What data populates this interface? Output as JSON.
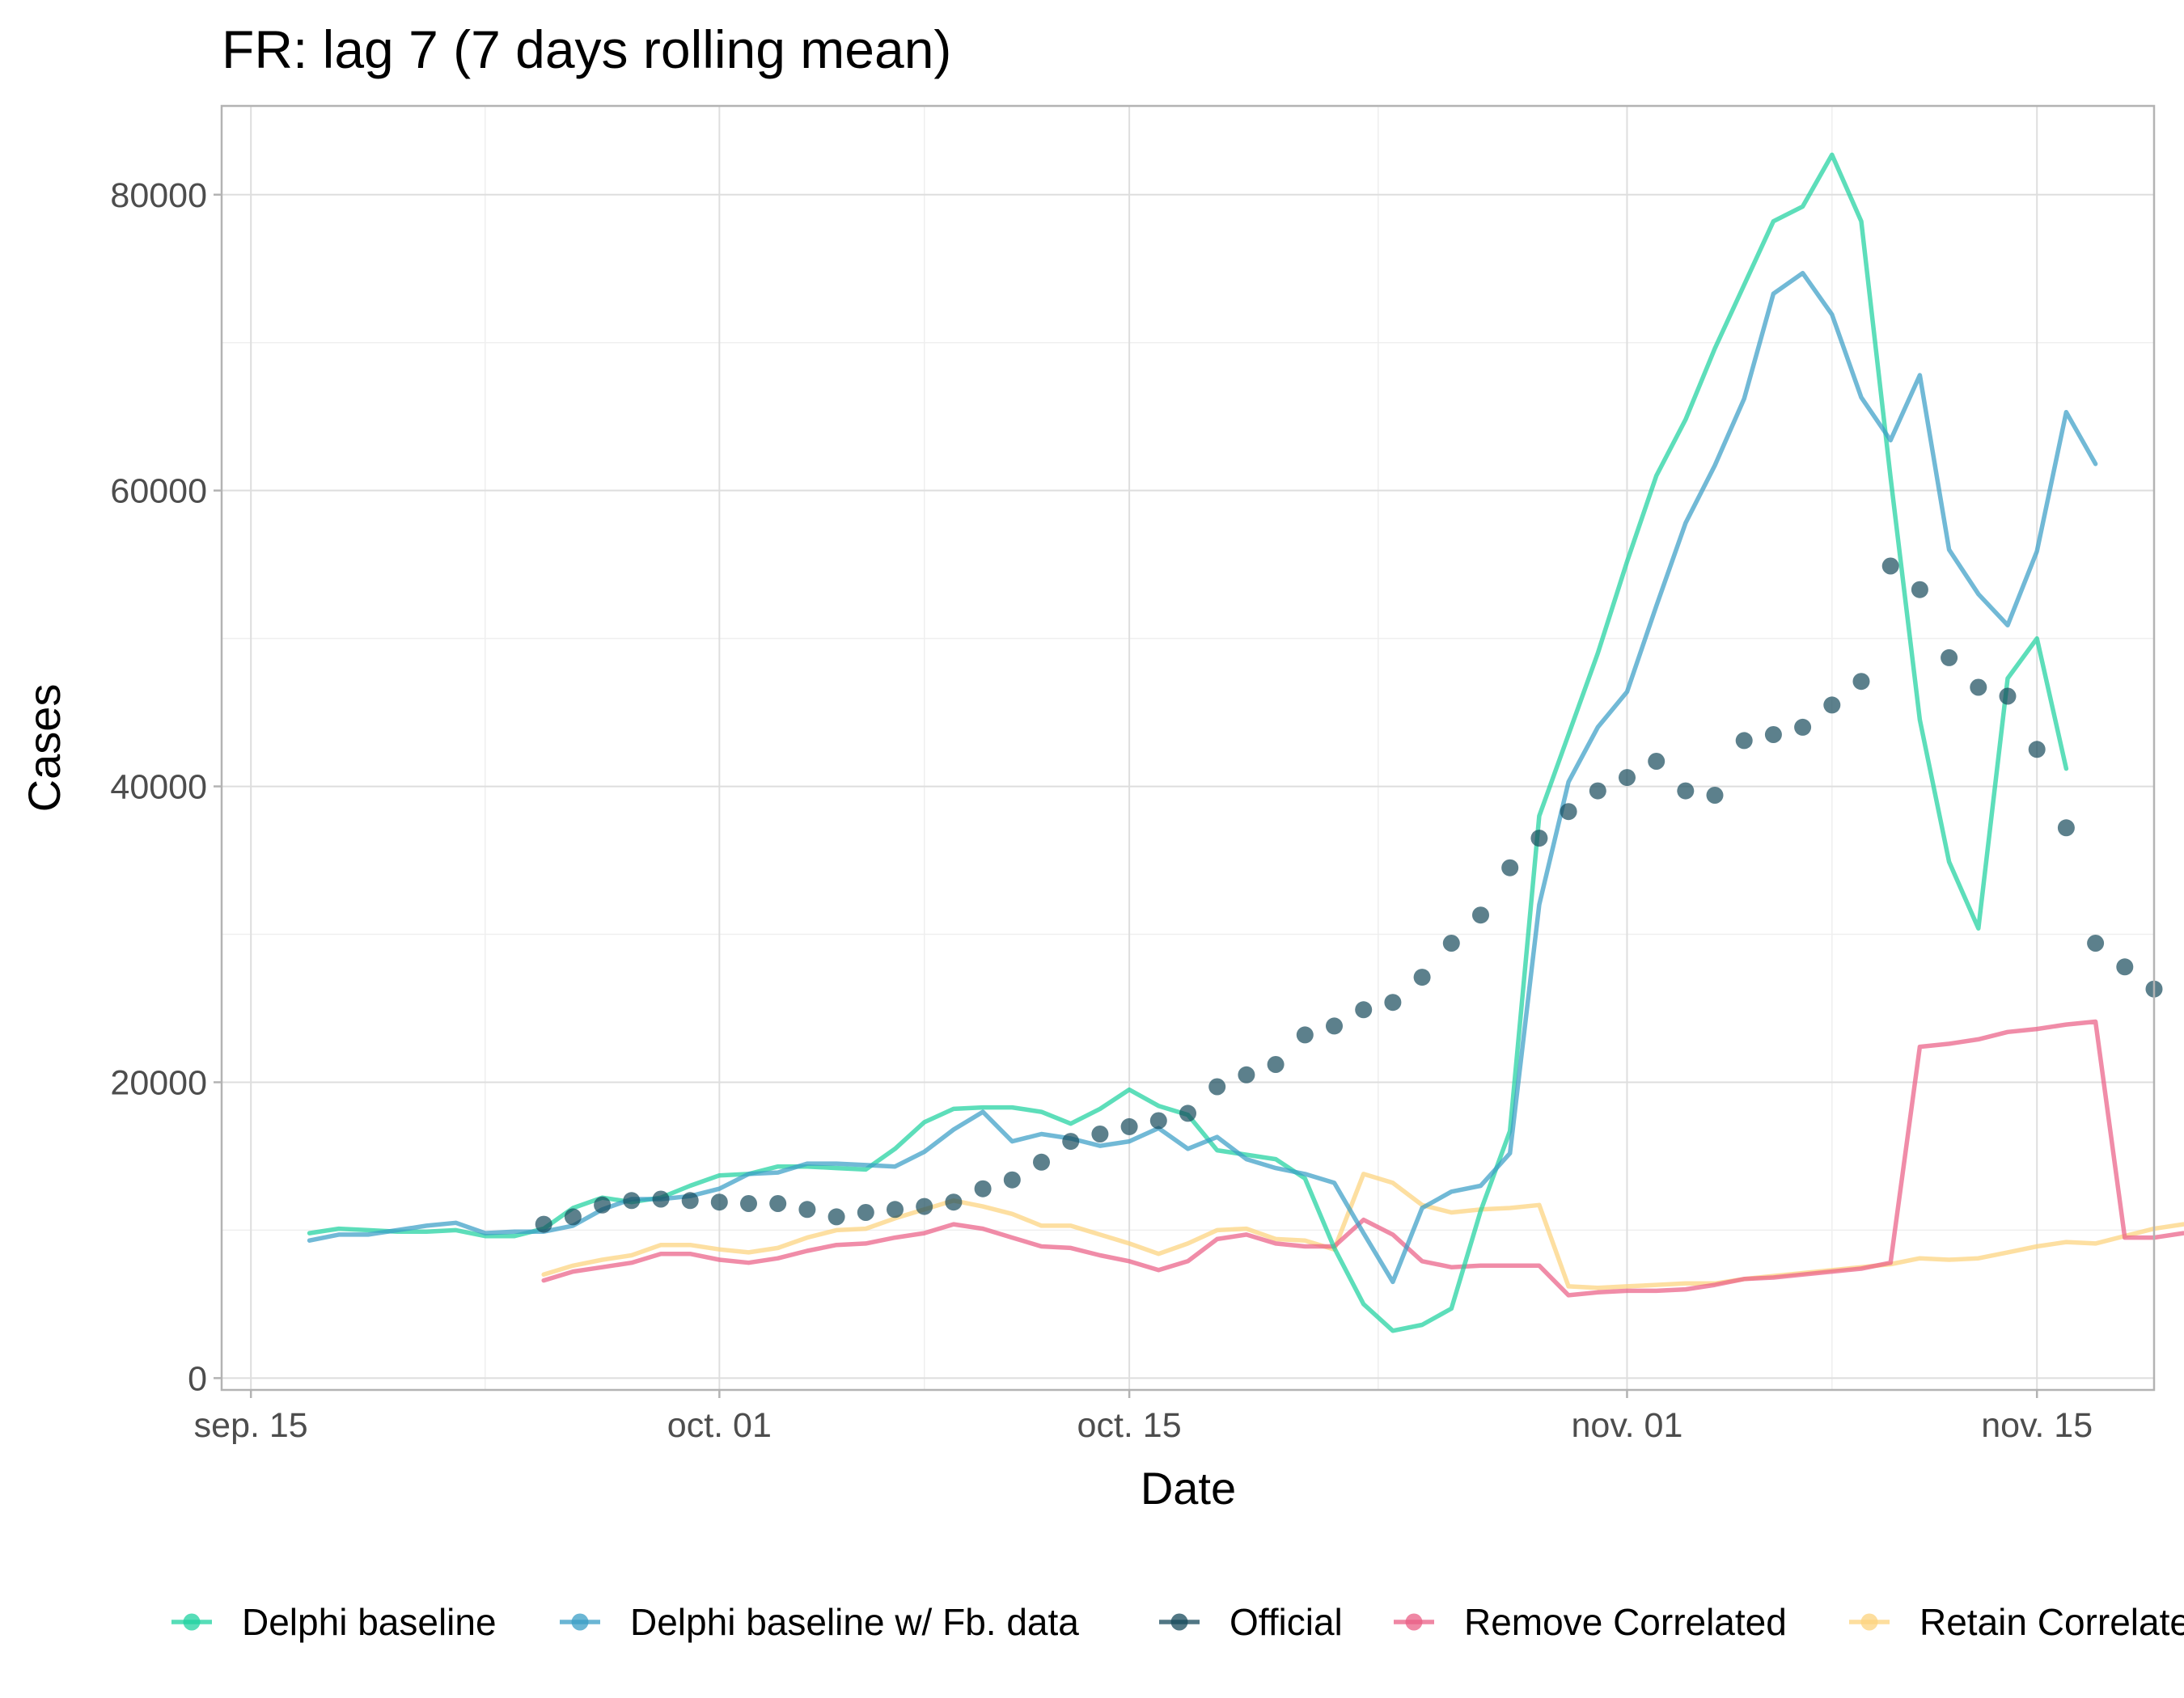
{
  "chart_data": {
    "type": "line",
    "title": "FR: lag 7 (7 days rolling mean)",
    "xlabel": "Date",
    "ylabel": "Cases",
    "x_axis": {
      "type": "date",
      "range": [
        "2020-09-14",
        "2020-11-19"
      ],
      "ticks": [
        "2020-09-15",
        "2020-10-01",
        "2020-10-15",
        "2020-11-01",
        "2020-11-15"
      ],
      "tick_labels": [
        "sep. 15",
        "oct. 01",
        "oct. 15",
        "nov. 01",
        "nov. 15"
      ]
    },
    "y_axis": {
      "range": [
        -800,
        86000
      ],
      "ticks": [
        0,
        20000,
        40000,
        60000,
        80000
      ],
      "tick_labels": [
        "0",
        "20000",
        "40000",
        "60000",
        "80000"
      ]
    },
    "grid": true,
    "legend_position": "bottom",
    "series": [
      {
        "name": "Delphi baseline",
        "mark": "line",
        "color": "#1fd1a0",
        "start": "2020-09-17",
        "values": [
          9800,
          10100,
          10000,
          9900,
          9900,
          10000,
          9600,
          9600,
          10100,
          11500,
          12200,
          11900,
          12200,
          13000,
          13700,
          13800,
          14300,
          14300,
          14200,
          14100,
          15500,
          17300,
          18200,
          18300,
          18300,
          18000,
          17200,
          18200,
          19500,
          18400,
          17800,
          15400,
          15100,
          14800,
          13500,
          8800,
          5000,
          3200,
          3600,
          4700,
          11300,
          16700,
          38000,
          43500,
          49000,
          55200,
          61000,
          64800,
          69600,
          73900,
          78200,
          79200,
          82700,
          78200,
          60900,
          44500,
          34900,
          30400,
          47300,
          50000,
          41200
        ]
      },
      {
        "name": "Delphi baseline w/ Fb. data",
        "mark": "line",
        "color": "#3a9ec6",
        "start": "2020-09-17",
        "values": [
          9300,
          9700,
          9700,
          10000,
          10300,
          10500,
          9800,
          9900,
          9900,
          10300,
          11400,
          12100,
          12100,
          12300,
          12800,
          13800,
          13900,
          14500,
          14500,
          14400,
          14300,
          15300,
          16800,
          18000,
          16000,
          16500,
          16200,
          15700,
          16000,
          16900,
          15500,
          16300,
          14800,
          14200,
          13800,
          13200,
          9800,
          6500,
          11500,
          12600,
          13000,
          15200,
          32000,
          40300,
          44000,
          46400,
          52200,
          57800,
          61700,
          66200,
          73300,
          74700,
          71900,
          66300,
          63400,
          67800,
          56000,
          53000,
          50900,
          55900,
          65300,
          61800
        ]
      },
      {
        "name": "Official",
        "mark": "points",
        "color": "#174a5b",
        "start": "2020-09-25",
        "values": [
          10400,
          10900,
          11700,
          12000,
          12100,
          12000,
          11900,
          11800,
          11800,
          11400,
          10900,
          11200,
          11400,
          11600,
          11900,
          12800,
          13400,
          14600,
          16000,
          16500,
          17000,
          17400,
          17900,
          19700,
          20500,
          21200,
          23200,
          23800,
          24900,
          25400,
          27100,
          29400,
          31300,
          34500,
          36500,
          38300,
          39700,
          40600,
          41700,
          39700,
          39400,
          43100,
          43500,
          44000,
          45500,
          47100,
          54900,
          53300,
          48700,
          46700,
          46100,
          42500,
          37200,
          29400,
          27800,
          26300
        ]
      },
      {
        "name": "Remove Correlated",
        "mark": "line",
        "color": "#ea5f86",
        "start": "2020-09-25",
        "values": [
          6600,
          7200,
          7500,
          7800,
          8400,
          8400,
          8000,
          7800,
          8100,
          8600,
          9000,
          9100,
          9500,
          9800,
          10400,
          10100,
          9500,
          8900,
          8800,
          8300,
          7900,
          7300,
          7900,
          9400,
          9700,
          9100,
          8900,
          8900,
          10700,
          9700,
          7900,
          7500,
          7600,
          7600,
          7600,
          5600,
          5800,
          5900,
          5900,
          6000,
          6300,
          6700,
          6800,
          7000,
          7200,
          7400,
          7800,
          22400,
          22600,
          22900,
          23400,
          23600,
          23900,
          24100,
          9500,
          9500,
          9800
        ]
      },
      {
        "name": "Retain Correlated",
        "mark": "line",
        "color": "#fcd37d",
        "start": "2020-09-25",
        "values": [
          7000,
          7600,
          8000,
          8300,
          9000,
          9000,
          8700,
          8500,
          8800,
          9500,
          10000,
          10100,
          10800,
          11400,
          12000,
          11600,
          11100,
          10300,
          10300,
          9700,
          9100,
          8400,
          9100,
          10000,
          10100,
          9400,
          9300,
          8700,
          13800,
          13200,
          11700,
          11200,
          11400,
          11500,
          11700,
          6200,
          6100,
          6200,
          6300,
          6400,
          6400,
          6700,
          6900,
          7100,
          7300,
          7500,
          7700,
          8100,
          8000,
          8100,
          8500,
          8900,
          9200,
          9100,
          9600,
          10100,
          10400
        ]
      }
    ]
  }
}
